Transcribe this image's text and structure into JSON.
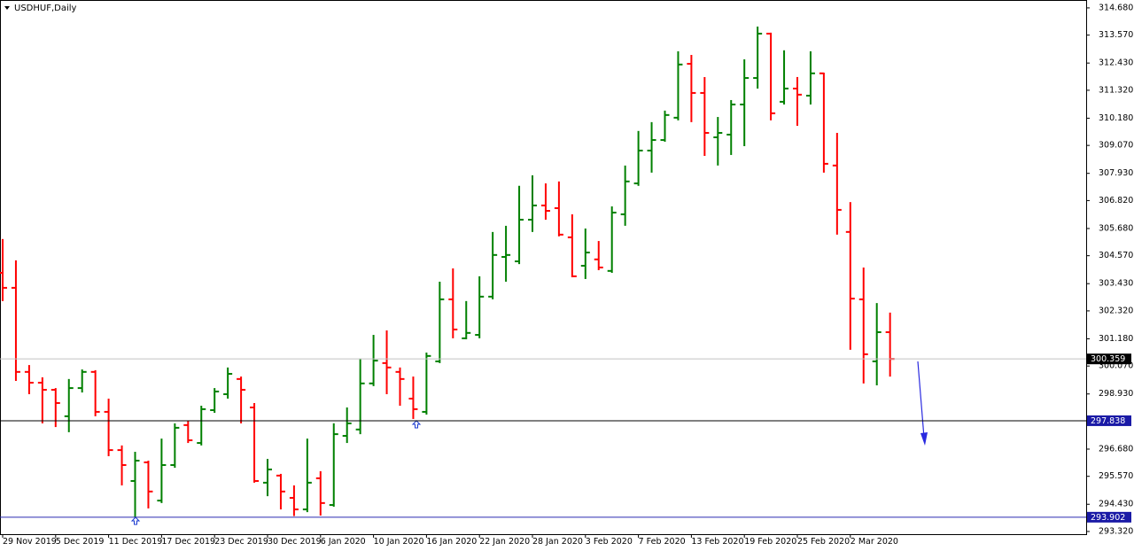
{
  "chart_data": {
    "type": "ohlc",
    "title": "USDHUF,Daily",
    "categories": [
      "29 Nov 2019",
      null,
      null,
      null,
      "5 Dec 2019",
      null,
      null,
      null,
      "11 Dec 2019",
      null,
      null,
      null,
      "17 Dec 2019",
      null,
      null,
      null,
      "23 Dec 2019",
      null,
      null,
      null,
      "30 Dec 2019",
      null,
      null,
      null,
      "6 Jan 2020",
      null,
      null,
      null,
      "10 Jan 2020",
      null,
      null,
      null,
      "16 Jan 2020",
      null,
      null,
      null,
      "22 Jan 2020",
      null,
      null,
      null,
      "28 Jan 2020",
      null,
      null,
      null,
      "3 Feb 2020",
      null,
      null,
      null,
      "7 Feb 2020",
      null,
      null,
      null,
      "13 Feb 2020",
      null,
      null,
      null,
      "19 Feb 2020",
      null,
      null,
      null,
      "25 Feb 2020",
      null,
      null,
      null,
      "2 Mar 2020",
      null,
      null,
      null
    ],
    "open": [
      303.87,
      303.26,
      299.83,
      299.39,
      299.1,
      298.02,
      299.17,
      299.83,
      298.2,
      296.64,
      295.38,
      296.14,
      294.58,
      296.03,
      297.66,
      296.93,
      298.27,
      298.92,
      299.54,
      298.38,
      295.31,
      295.6,
      294.69,
      294.22,
      295.49,
      294.4,
      297.22,
      297.48,
      299.36,
      300.19,
      299.83,
      298.74,
      298.2,
      300.26,
      302.79,
      301.2,
      301.34,
      302.9,
      304.52,
      304.34,
      306.04,
      306.62,
      306.51,
      305.32,
      304.16,
      304.42,
      303.95,
      306.26,
      307.52,
      308.86,
      309.29,
      310.2,
      312.4,
      311.21,
      309.4,
      309.51,
      310.74,
      311.82,
      313.63,
      310.85,
      311.39,
      311.1,
      312.01,
      308.25,
      305.54,
      302.79,
      300.26,
      301.45
    ],
    "high": [
      305.25,
      304.38,
      300.11,
      299.61,
      299.17,
      299.54,
      299.93,
      299.9,
      298.74,
      296.83,
      296.57,
      296.21,
      297.11,
      297.73,
      297.84,
      298.45,
      299.17,
      300.01,
      299.64,
      298.56,
      296.28,
      295.67,
      295.2,
      297.11,
      295.78,
      297.73,
      298.38,
      300.37,
      301.34,
      301.52,
      300.01,
      299.64,
      300.62,
      303.51,
      304.05,
      302.72,
      303.73,
      305.54,
      305.79,
      307.42,
      307.85,
      307.52,
      307.6,
      306.26,
      305.68,
      305.17,
      306.58,
      308.25,
      309.66,
      310.02,
      310.49,
      312.91,
      312.76,
      311.86,
      310.23,
      310.92,
      312.58,
      313.92,
      313.67,
      312.95,
      311.86,
      312.91,
      312.04,
      309.58,
      306.76,
      304.09,
      302.64,
      302.25
    ],
    "low": [
      302.72,
      299.46,
      298.92,
      297.73,
      297.58,
      297.37,
      298.99,
      298.02,
      296.39,
      295.2,
      293.9,
      294.26,
      294.48,
      295.92,
      296.93,
      296.83,
      298.16,
      298.74,
      297.73,
      295.31,
      294.76,
      294.22,
      293.95,
      294.11,
      293.97,
      294.33,
      296.93,
      297.29,
      299.25,
      298.92,
      298.45,
      297.91,
      298.09,
      300.19,
      301.2,
      301.16,
      301.2,
      302.79,
      303.51,
      304.23,
      305.54,
      306.04,
      305.36,
      303.69,
      303.62,
      303.98,
      303.87,
      305.79,
      307.42,
      307.96,
      309.22,
      310.09,
      310.02,
      308.64,
      308.25,
      308.68,
      309.04,
      311.39,
      310.09,
      310.74,
      309.87,
      310.74,
      307.96,
      305.43,
      300.73,
      299.36,
      299.28,
      299.64
    ],
    "close": [
      303.26,
      299.83,
      299.39,
      299.1,
      298.56,
      299.17,
      299.83,
      298.2,
      296.64,
      296.03,
      296.21,
      294.95,
      296.03,
      297.55,
      297.04,
      298.31,
      299.03,
      299.75,
      299.1,
      295.38,
      295.85,
      294.95,
      294.22,
      295.31,
      294.48,
      297.29,
      297.73,
      299.36,
      300.29,
      300.01,
      299.54,
      298.31,
      300.48,
      302.79,
      301.56,
      301.42,
      302.9,
      304.6,
      304.6,
      306.04,
      306.62,
      306.4,
      305.43,
      303.73,
      304.7,
      304.09,
      306.33,
      307.6,
      308.86,
      309.29,
      310.31,
      312.37,
      311.21,
      309.58,
      309.58,
      310.74,
      311.82,
      313.63,
      310.38,
      311.39,
      311.14,
      312.01,
      308.32,
      306.44,
      302.82,
      300.55,
      301.45,
      300.359
    ],
    "up_color": "#008000",
    "down_color": "#ff0000",
    "ylim": [
      293.21,
      314.93
    ],
    "yticks": [
      {
        "value": 314.68,
        "label": "314.680"
      },
      {
        "value": 313.57,
        "label": "313.570"
      },
      {
        "value": 312.43,
        "label": "312.430"
      },
      {
        "value": 311.32,
        "label": "311.320"
      },
      {
        "value": 310.18,
        "label": "310.180"
      },
      {
        "value": 309.07,
        "label": "309.070"
      },
      {
        "value": 307.93,
        "label": "307.930"
      },
      {
        "value": 306.82,
        "label": "306.820"
      },
      {
        "value": 305.68,
        "label": "305.680"
      },
      {
        "value": 304.57,
        "label": "304.570"
      },
      {
        "value": 303.43,
        "label": "303.430"
      },
      {
        "value": 302.32,
        "label": "302.320"
      },
      {
        "value": 301.18,
        "label": "301.180"
      },
      {
        "value": 300.07,
        "label": "300.070"
      },
      {
        "value": 298.93,
        "label": "298.930"
      },
      {
        "value": 296.68,
        "label": "296.680"
      },
      {
        "value": 295.57,
        "label": "295.570"
      },
      {
        "value": 294.43,
        "label": "294.430"
      },
      {
        "value": 293.32,
        "label": "293.320"
      }
    ],
    "grid": false,
    "hlines": [
      {
        "value": 300.359,
        "line_color": "#c0c0c0",
        "box_color": "#000000"
      },
      {
        "value": 297.838,
        "line_color": "#000000",
        "box_color": "#1a1aa6"
      },
      {
        "value": 293.902,
        "line_color": "#2a2ab0",
        "box_color": "#1a1aa6"
      }
    ]
  }
}
